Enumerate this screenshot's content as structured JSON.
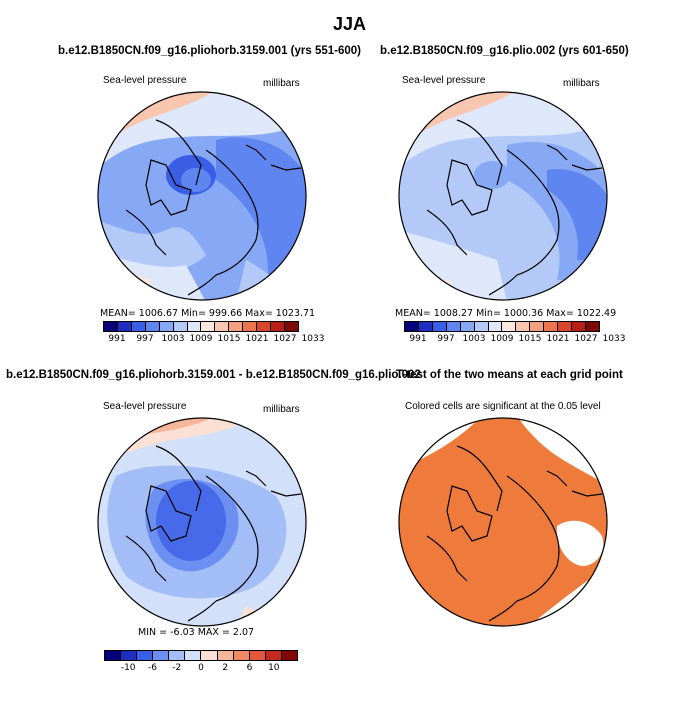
{
  "figure_title": "JJA",
  "panels": [
    {
      "title": "b.e12.B1850CN.f09_g16.pliohorb.3159.001 (yrs 551-600)",
      "variable": "Sea-level pressure",
      "units": "millibars",
      "stats": "MEAN= 1006.67   Min= 999.66   Max= 1023.71",
      "colorbar_labels": [
        "991",
        "997",
        "1003",
        "1009",
        "1015",
        "1021",
        "1027",
        "1033"
      ]
    },
    {
      "title": "b.e12.B1850CN.f09_g16.plio.002 (yrs 601-650)",
      "variable": "Sea-level pressure",
      "units": "millibars",
      "stats": "MEAN= 1008.27   Min= 1000.36   Max= 1022.49",
      "colorbar_labels": [
        "991",
        "997",
        "1003",
        "1009",
        "1015",
        "1021",
        "1027",
        "1033"
      ]
    },
    {
      "title": "b.e12.B1850CN.f09_g16.pliohorb.3159.001 - b.e12.B1850CN.f09_g16.plio.002",
      "variable": "Sea-level pressure",
      "units": "millibars",
      "stats": "MIN =   -6.03  MAX =    2.07",
      "colorbar_labels": [
        "-10",
        "-6",
        "-2",
        "0",
        "2",
        "6",
        "10"
      ]
    },
    {
      "title": "T-test of the two means at each grid point",
      "subtitle": "Colored cells are significant at the 0.05 level"
    }
  ],
  "colors": {
    "abs_colorbar": [
      "#08007a",
      "#1d2ec1",
      "#3a5ee6",
      "#5f86f0",
      "#87a8f5",
      "#b3caf8",
      "#dfe8fb",
      "#fde6dc",
      "#f9c6b0",
      "#f4a07f",
      "#ec744f",
      "#d9452b",
      "#b71f16",
      "#7c0a05"
    ],
    "diff_colorbar": [
      "#08007a",
      "#1d2ec1",
      "#3a5ee6",
      "#6b90f2",
      "#a3bdf7",
      "#d3e0fa",
      "#fce0d4",
      "#f6b69a",
      "#ef8a63",
      "#e2583a",
      "#c4291d",
      "#800806"
    ],
    "significant": "#ee7b3c",
    "ocean_mid": "#7a9ef2",
    "light_blue": "#b6cbf8"
  }
}
